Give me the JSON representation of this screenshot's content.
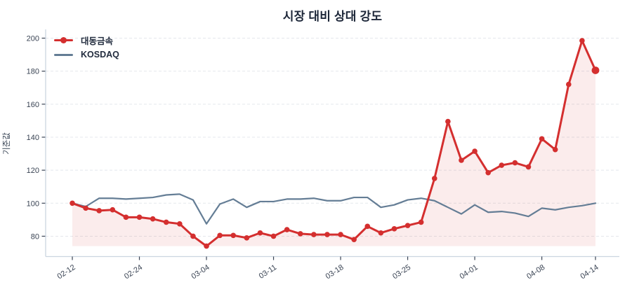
{
  "title": "시장 대비 상대 강도",
  "y_axis_label": "기준값",
  "colors": {
    "stock_line": "#d42f2f",
    "stock_fill": "rgba(212, 47, 47, 0.09)",
    "market_line": "#647d95",
    "title_text": "#1c2638",
    "tick_text": "#3a4454",
    "gridline": "#e4e7ec",
    "spine": "#cbd5e0",
    "tick_mark": "#3a4454",
    "background": "#ffffff"
  },
  "chart_data": {
    "type": "line",
    "title": "시장 대비 상대 강도",
    "xlabel": "",
    "ylabel": "기준값",
    "n_points": 40,
    "x_tick_labels": [
      "02-12",
      "02-24",
      "03-04",
      "03-11",
      "03-18",
      "03-25",
      "04-01",
      "04-08",
      "04-14"
    ],
    "x_tick_indices": [
      0,
      5,
      10,
      15,
      20,
      25,
      30,
      35,
      39
    ],
    "y_ticks": [
      80,
      100,
      120,
      140,
      160,
      180,
      200
    ],
    "ylim": [
      67,
      206
    ],
    "grid": "horizontal-dashed",
    "legend_position": "upper-left",
    "x_tick_rotation_deg": 33,
    "series": [
      {
        "name": "대동금속",
        "color": "#d42f2f",
        "marker": "circle",
        "fill_to_min": true,
        "values": [
          100,
          97,
          95.5,
          96,
          91.5,
          91.5,
          90.5,
          88.5,
          87.5,
          80,
          74,
          80.5,
          80.5,
          79,
          82,
          80,
          84,
          81.5,
          81,
          81,
          81,
          78,
          86,
          82,
          84.5,
          86.5,
          88.5,
          115,
          149.5,
          126,
          131.5,
          118.5,
          123,
          124.5,
          122,
          139,
          132.5,
          172,
          198.5,
          180.5
        ]
      },
      {
        "name": "KOSDAQ",
        "color": "#647d95",
        "marker": "none",
        "fill_to_min": false,
        "values": [
          100,
          98,
          103,
          103,
          102.5,
          103,
          103.5,
          105,
          105.5,
          102,
          87.5,
          99.5,
          102.5,
          97.5,
          101,
          101,
          102.5,
          102.5,
          103,
          101.5,
          101.5,
          103.5,
          103.5,
          97.5,
          99,
          102,
          103,
          101.5,
          97.5,
          93.5,
          99,
          94.5,
          95,
          94,
          92,
          97,
          96,
          97.5,
          98.5,
          100
        ]
      }
    ]
  }
}
